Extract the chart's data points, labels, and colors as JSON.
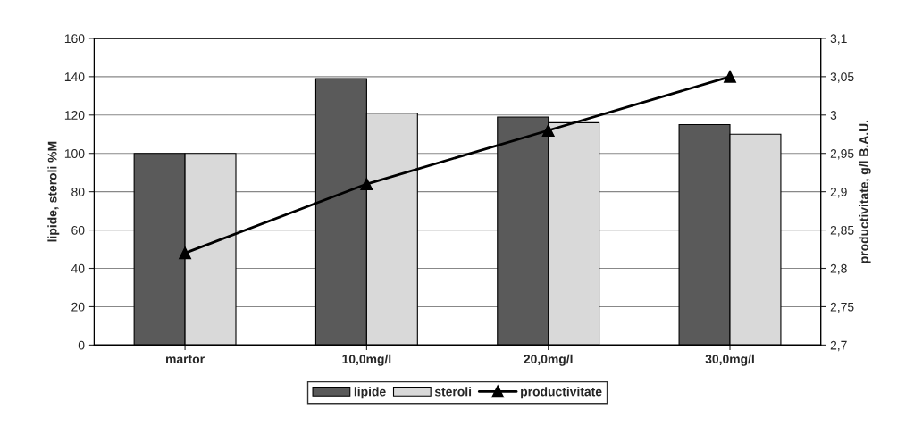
{
  "chart_data": {
    "type": "bar",
    "categories": [
      "martor",
      "10,0mg/l",
      "20,0mg/l",
      "30,0mg/l"
    ],
    "ylabel": "lipide, steroli %M",
    "y2label": "productivitate, g/l B.A.U.",
    "series": [
      {
        "name": "lipide",
        "color": "#5a5a5a",
        "values": [
          100,
          139,
          119,
          115
        ]
      },
      {
        "name": "steroli",
        "color": "#d9d9d9",
        "values": [
          100,
          121,
          116,
          110
        ]
      },
      {
        "name": "productivitate",
        "type": "line",
        "axis": "y2",
        "color": "#000000",
        "marker": "triangle",
        "values": [
          2.82,
          2.91,
          2.98,
          3.05
        ]
      }
    ],
    "ylim": [
      0,
      160
    ],
    "yticks": [
      0,
      20,
      40,
      60,
      80,
      100,
      120,
      140,
      160
    ],
    "y2lim": [
      2.7,
      3.1
    ],
    "y2ticks": [
      {
        "value": 2.7,
        "label": "2,7"
      },
      {
        "value": 2.75,
        "label": "2,75"
      },
      {
        "value": 2.8,
        "label": "2,8"
      },
      {
        "value": 2.85,
        "label": "2,85"
      },
      {
        "value": 2.9,
        "label": "2,9"
      },
      {
        "value": 2.95,
        "label": "2,95"
      },
      {
        "value": 3.0,
        "label": "3"
      },
      {
        "value": 3.05,
        "label": "3,05"
      },
      {
        "value": 3.1,
        "label": "3,1"
      }
    ],
    "grid": "y",
    "legend": "bottom"
  }
}
